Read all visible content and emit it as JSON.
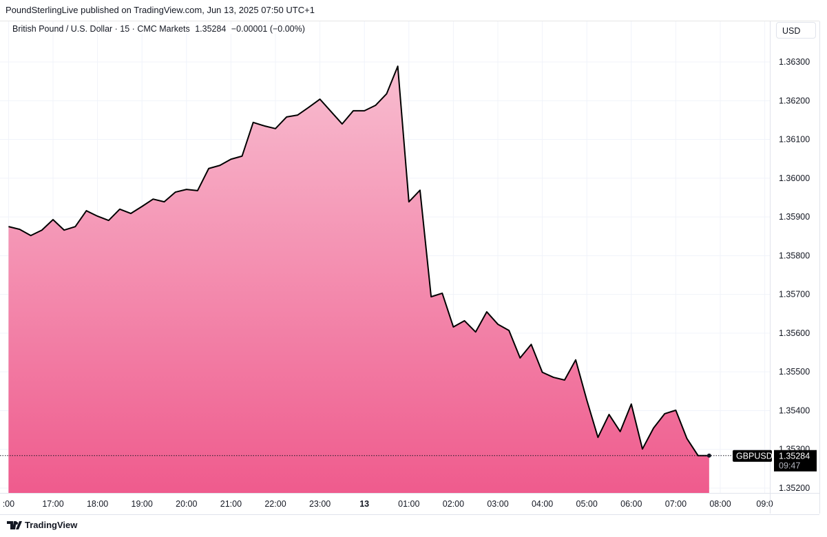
{
  "published": "PoundSterlingLive published on TradingView.com, Jun 13, 2025 07:50 UTC+1",
  "legend": {
    "symbol": "British Pound / U.S. Dollar · 15 · CMC Markets",
    "last": "1.35284",
    "change": "−0.00001 (−0.00%)"
  },
  "currency_button": "USD",
  "logo": "TradingView",
  "chart_data": {
    "type": "area",
    "series": [
      {
        "name": "GBPUSD",
        "values": [
          1.35875,
          1.35868,
          1.35852,
          1.35866,
          1.35893,
          1.35866,
          1.35875,
          1.35916,
          1.35902,
          1.35891,
          1.3592,
          1.35909,
          1.35927,
          1.35946,
          1.35939,
          1.35964,
          1.35971,
          1.35968,
          1.36025,
          1.36033,
          1.36049,
          1.36057,
          1.36144,
          1.36135,
          1.36128,
          1.36158,
          1.36163,
          1.36183,
          1.36204,
          1.36172,
          1.3614,
          1.36174,
          1.36174,
          1.36188,
          1.36218,
          1.36289,
          1.35939,
          1.35969,
          1.35694,
          1.35703,
          1.35616,
          1.35632,
          1.35603,
          1.35655,
          1.35623,
          1.35607,
          1.35536,
          1.35571,
          1.35499,
          1.35486,
          1.35479,
          1.35531,
          1.35427,
          1.35331,
          1.3539,
          1.35346,
          1.35417,
          1.35301,
          1.35355,
          1.35392,
          1.35401,
          1.35328,
          1.35284,
          1.35284
        ]
      }
    ],
    "x_start": "16:00",
    "interval_minutes": 15,
    "x_tick_labels": [
      ":00",
      "17:00",
      "18:00",
      "19:00",
      "20:00",
      "21:00",
      "22:00",
      "23:00",
      "13",
      "01:00",
      "02:00",
      "03:00",
      "04:00",
      "05:00",
      "06:00",
      "07:00",
      "08:00",
      "09:0"
    ],
    "y_tick_labels": [
      "1.36300",
      "1.36200",
      "1.36100",
      "1.36000",
      "1.35900",
      "1.35800",
      "1.35700",
      "1.35600",
      "1.35500",
      "1.35400",
      "1.35300",
      "1.35200"
    ],
    "ylim": [
      1.3517,
      1.364
    ],
    "grid": true,
    "last_price_label": {
      "symbol": "GBPUSD",
      "price": "1.35284",
      "countdown": "09:47"
    },
    "colors": {
      "line": "#000000",
      "fill_top": "#f8bdd0",
      "fill_bottom": "#ef5b8d",
      "grid": "#f0f3fa"
    }
  }
}
